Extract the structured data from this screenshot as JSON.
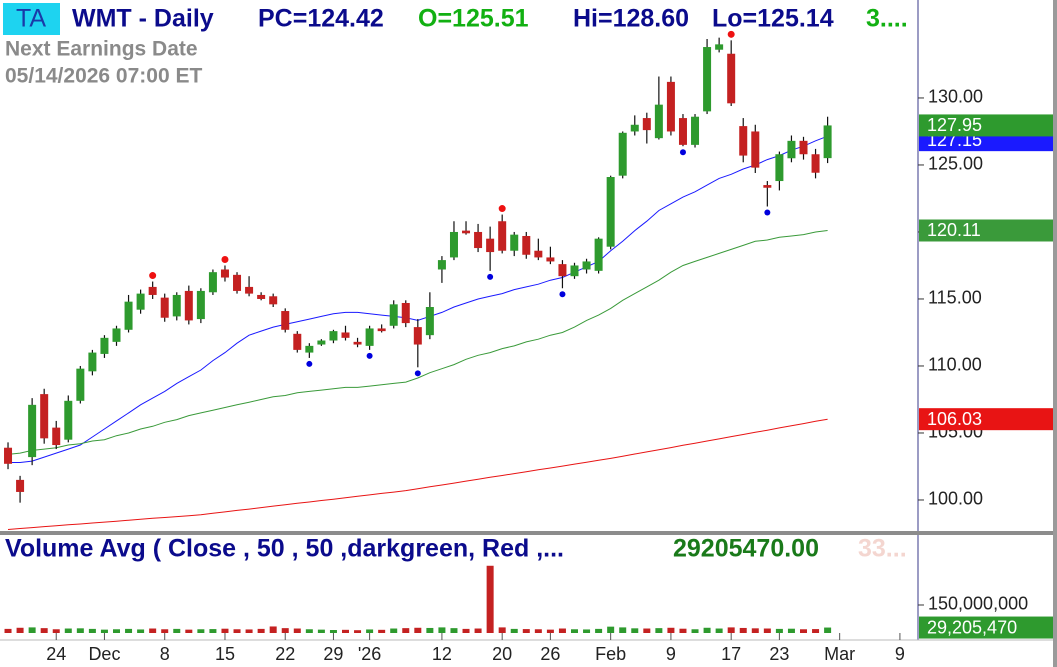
{
  "header": {
    "badge": "TA",
    "symbol": "WMT - Daily",
    "pc": "PC=124.42",
    "open": "O=125.51",
    "high": "Hi=128.60",
    "low": "Lo=125.14",
    "change": "3....",
    "earnings_title": "Next Earnings Date",
    "earnings_date": "05/14/2026  07:00 ET"
  },
  "chart_data": {
    "type": "candlestick",
    "xlim": [
      -0.5,
      75.5
    ],
    "xticks": [
      {
        "value": 4,
        "label": "24"
      },
      {
        "value": 8,
        "label": "Dec"
      },
      {
        "value": 13,
        "label": "8"
      },
      {
        "value": 18,
        "label": "15"
      },
      {
        "value": 23,
        "label": "22"
      },
      {
        "value": 27,
        "label": "29"
      },
      {
        "value": 30,
        "label": "'26"
      },
      {
        "value": 36,
        "label": "12"
      },
      {
        "value": 41,
        "label": "20"
      },
      {
        "value": 45,
        "label": "26"
      },
      {
        "value": 50,
        "label": "Feb"
      },
      {
        "value": 55,
        "label": "9"
      },
      {
        "value": 60,
        "label": "17"
      },
      {
        "value": 64,
        "label": "23"
      },
      {
        "value": 69,
        "label": "Mar"
      },
      {
        "value": 74,
        "label": "9"
      }
    ],
    "ylim": [
      97.76,
      137.31
    ],
    "yticks": [
      {
        "value": 100,
        "label": "100.00"
      },
      {
        "value": 105,
        "label": "105.00"
      },
      {
        "value": 110,
        "label": "110.00"
      },
      {
        "value": 115,
        "label": "115.00"
      },
      {
        "value": 120,
        "label": "120.00"
      },
      {
        "value": 125,
        "label": "125.00"
      },
      {
        "value": 130,
        "label": "130.00"
      }
    ],
    "up_color": "#2e9a2e",
    "down_color": "#c42121",
    "open": [
      103.9,
      101.5,
      103.2,
      107.9,
      105.4,
      104.5,
      107.4,
      109.6,
      110.9,
      111.8,
      112.7,
      114.2,
      115.9,
      115.1,
      113.7,
      115.6,
      113.5,
      115.5,
      117.2,
      116.8,
      115.9,
      115.3,
      115.2,
      114.1,
      112.4,
      111.0,
      111.6,
      111.9,
      112.5,
      111.8,
      111.5,
      112.8,
      113.0,
      114.7,
      112.9,
      112.3,
      117.2,
      118.1,
      120.1,
      120.0,
      119.5,
      120.8,
      118.6,
      119.7,
      118.6,
      118.1,
      117.6,
      116.7,
      117.2,
      117.1,
      118.9,
      124.2,
      127.5,
      128.5,
      127.0,
      131.2,
      128.5,
      126.5,
      129.0,
      133.6,
      133.3,
      127.9,
      127.5,
      123.5,
      123.8,
      125.5,
      126.8,
      125.8,
      125.51
    ],
    "high": [
      104.3,
      101.8,
      107.6,
      108.3,
      105.9,
      107.8,
      110.0,
      111.2,
      112.3,
      113.0,
      115.3,
      115.7,
      116.3,
      115.4,
      115.5,
      116.0,
      115.8,
      117.2,
      117.5,
      117.0,
      116.7,
      115.5,
      115.4,
      114.3,
      112.6,
      111.7,
      112.0,
      112.7,
      113.0,
      112.1,
      113.0,
      113.1,
      114.9,
      114.9,
      113.5,
      115.5,
      118.2,
      120.8,
      120.8,
      120.6,
      120.4,
      121.3,
      120.0,
      120.0,
      119.5,
      118.9,
      117.9,
      117.7,
      118.0,
      119.6,
      124.2,
      127.5,
      128.7,
      128.9,
      131.6,
      131.6,
      128.8,
      128.8,
      134.4,
      134.5,
      134.3,
      128.5,
      128.0,
      123.8,
      126.0,
      127.2,
      127.1,
      126.2,
      128.6
    ],
    "low": [
      102.3,
      99.8,
      102.6,
      104.2,
      103.8,
      104.3,
      107.2,
      109.3,
      110.6,
      111.5,
      112.5,
      113.9,
      115.0,
      113.3,
      113.4,
      113.1,
      113.2,
      115.3,
      116.3,
      115.4,
      115.2,
      114.9,
      114.4,
      112.5,
      111.0,
      110.6,
      111.5,
      111.7,
      111.9,
      111.4,
      111.2,
      112.5,
      112.8,
      112.9,
      109.9,
      112.0,
      116.2,
      117.9,
      119.8,
      118.5,
      117.1,
      118.4,
      118.2,
      118.0,
      117.9,
      117.6,
      115.8,
      116.5,
      116.9,
      116.9,
      118.7,
      124.0,
      127.2,
      126.6,
      126.9,
      127.2,
      126.4,
      126.3,
      128.8,
      133.4,
      129.4,
      125.2,
      124.4,
      121.9,
      123.1,
      125.2,
      125.4,
      124.0,
      125.14
    ],
    "close": [
      102.7,
      100.6,
      107.1,
      104.6,
      104.1,
      107.4,
      109.8,
      111.0,
      112.1,
      112.8,
      114.8,
      115.4,
      115.3,
      113.6,
      115.3,
      113.4,
      115.6,
      117.0,
      116.6,
      115.6,
      115.4,
      115.0,
      114.6,
      112.7,
      111.2,
      111.5,
      111.9,
      112.6,
      112.1,
      111.6,
      112.8,
      112.6,
      114.6,
      113.2,
      111.6,
      114.4,
      117.9,
      120.0,
      119.9,
      118.8,
      118.5,
      118.6,
      119.8,
      118.3,
      118.1,
      117.8,
      116.7,
      117.5,
      117.8,
      119.5,
      124.1,
      127.4,
      128.0,
      127.6,
      129.5,
      127.5,
      126.5,
      128.6,
      133.8,
      134.0,
      129.6,
      125.7,
      124.8,
      123.3,
      125.8,
      126.8,
      125.8,
      124.42,
      127.95
    ],
    "pivot_highs": [
      12,
      18,
      41,
      60
    ],
    "pivot_high_color": "#ee1111",
    "pivot_lows": [
      25,
      30,
      34,
      40,
      46,
      56,
      63
    ],
    "pivot_low_color": "#0000dd",
    "moving_averages": [
      {
        "color": "#1a1aff",
        "values": [
          102.8,
          102.8,
          102.9,
          103.2,
          103.5,
          103.8,
          104.1,
          104.7,
          105.3,
          105.9,
          106.5,
          107.1,
          107.6,
          108.1,
          108.7,
          109.2,
          109.7,
          110.4,
          111.0,
          111.7,
          112.3,
          112.6,
          112.9,
          113.1,
          113.3,
          113.5,
          113.7,
          113.9,
          114.0,
          114.0,
          113.9,
          113.8,
          113.7,
          113.6,
          113.4,
          113.7,
          114.0,
          114.4,
          114.7,
          115.0,
          115.2,
          115.4,
          115.7,
          115.9,
          116.1,
          116.4,
          116.6,
          117.0,
          117.4,
          117.8,
          118.6,
          119.3,
          120.1,
          120.8,
          121.6,
          122.1,
          122.6,
          123.0,
          123.5,
          124.0,
          124.3,
          124.7,
          125.0,
          125.4,
          125.7,
          126.1,
          126.4,
          126.8,
          127.15
        ]
      },
      {
        "color": "#3a9a3a",
        "values": [
          103.4,
          103.5,
          103.7,
          103.8,
          103.9,
          104.1,
          104.2,
          104.4,
          104.5,
          104.8,
          105.0,
          105.3,
          105.5,
          105.8,
          106.0,
          106.3,
          106.5,
          106.7,
          106.9,
          107.1,
          107.3,
          107.5,
          107.7,
          107.8,
          108.0,
          108.1,
          108.2,
          108.3,
          108.4,
          108.4,
          108.5,
          108.6,
          108.7,
          108.8,
          109.1,
          109.5,
          109.8,
          110.1,
          110.5,
          110.8,
          111.0,
          111.3,
          111.5,
          111.8,
          112.0,
          112.3,
          112.5,
          112.9,
          113.4,
          113.8,
          114.3,
          114.9,
          115.4,
          115.9,
          116.4,
          117.0,
          117.5,
          117.8,
          118.1,
          118.4,
          118.7,
          119.0,
          119.3,
          119.4,
          119.6,
          119.7,
          119.8,
          120.0,
          120.11
        ]
      },
      {
        "color": "#e81414",
        "values": [
          97.8,
          97.87,
          97.94,
          98.01,
          98.08,
          98.15,
          98.21,
          98.28,
          98.35,
          98.42,
          98.49,
          98.56,
          98.63,
          98.69,
          98.76,
          98.83,
          98.9,
          99.01,
          99.11,
          99.22,
          99.32,
          99.43,
          99.54,
          99.64,
          99.75,
          99.85,
          99.96,
          100.06,
          100.17,
          100.28,
          100.38,
          100.49,
          100.59,
          100.7,
          100.84,
          100.98,
          101.12,
          101.26,
          101.41,
          101.55,
          101.69,
          101.83,
          101.97,
          102.11,
          102.25,
          102.39,
          102.53,
          102.68,
          102.82,
          102.96,
          103.1,
          103.26,
          103.43,
          103.59,
          103.75,
          103.91,
          104.08,
          104.24,
          104.4,
          104.56,
          104.73,
          104.89,
          105.05,
          105.21,
          105.38,
          105.54,
          105.7,
          105.87,
          106.03
        ]
      }
    ],
    "last_color": "#2e9a2e",
    "volume": {
      "title": "Volume Avg ( Close , 50 , 50 ,darkgreen, Red ,...",
      "value_text": "29205470.00",
      "extra_text": "33...",
      "ylim": [
        0,
        514000000
      ],
      "yticks": [
        {
          "value": 150000000,
          "label": "150,000,000"
        }
      ],
      "values": [
        22000000,
        28000000,
        30000000,
        26000000,
        20000000,
        24000000,
        25000000,
        22000000,
        18000000,
        20000000,
        22000000,
        19000000,
        24000000,
        20000000,
        22000000,
        18000000,
        20000000,
        21000000,
        23000000,
        20000000,
        19000000,
        22000000,
        35000000,
        26000000,
        24000000,
        20000000,
        18000000,
        16000000,
        17000000,
        15000000,
        19000000,
        17000000,
        24000000,
        26000000,
        28000000,
        27000000,
        30000000,
        26000000,
        22000000,
        24000000,
        360000000,
        30000000,
        22000000,
        21000000,
        20000000,
        18000000,
        24000000,
        20000000,
        19000000,
        22000000,
        34000000,
        30000000,
        25000000,
        24000000,
        26000000,
        28000000,
        23000000,
        20000000,
        28000000,
        24000000,
        30000000,
        27000000,
        25000000,
        24000000,
        22000000,
        23000000,
        20000000,
        21000000,
        29205470
      ],
      "last_value_label": "29,205,470"
    }
  }
}
